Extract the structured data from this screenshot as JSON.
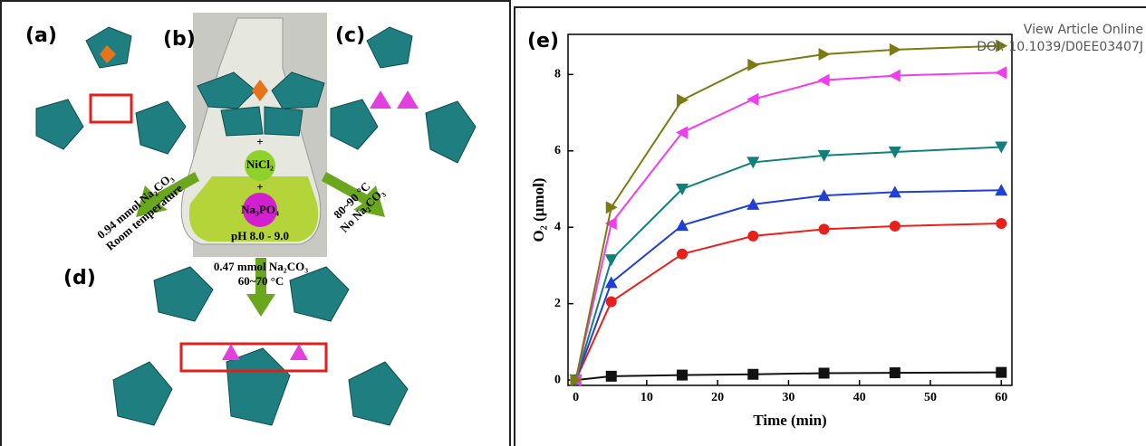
{
  "header": {
    "view_article": "View Article Online",
    "doi": "DOI: 10.1039/D0EE03407J"
  },
  "scheme": {
    "labels": [
      "(a)",
      "(b)",
      "(c)",
      "(d)"
    ],
    "plus": "+",
    "nicl2": "NiCl₂",
    "na3po4": "Na₃PO₄",
    "ph": "pH 8.0 - 9.0",
    "left_arrow": [
      "0.94 mmol Na₂CO₃",
      "Room temperature"
    ],
    "right_arrow": [
      "80~90 °C",
      "No Na₂CO₃"
    ],
    "down_arrow": [
      "0.47 mmol Na₂CO₃",
      "60~70 °C"
    ]
  },
  "chart_data": {
    "type": "line",
    "panel_label": "(e)",
    "xlabel": "Time (min)",
    "ylabel": "O₂ (μmol)",
    "x": [
      0,
      5,
      15,
      25,
      35,
      45,
      60
    ],
    "series": [
      {
        "color": "#111111",
        "marker": "square",
        "values": [
          0,
          0.1,
          0.13,
          0.15,
          0.18,
          0.19,
          0.2
        ]
      },
      {
        "color": "#e8201c",
        "marker": "circle",
        "values": [
          0,
          2.05,
          3.3,
          3.77,
          3.95,
          4.03,
          4.1
        ]
      },
      {
        "color": "#1f3fd6",
        "marker": "triangle-up",
        "values": [
          0,
          2.55,
          4.05,
          4.6,
          4.83,
          4.92,
          4.97
        ]
      },
      {
        "color": "#12807a",
        "marker": "triangle-down",
        "values": [
          0,
          3.15,
          5.0,
          5.7,
          5.88,
          5.97,
          6.1
        ]
      },
      {
        "color": "#f23cf0",
        "marker": "triangle-left",
        "values": [
          0,
          4.1,
          6.48,
          7.35,
          7.85,
          7.97,
          8.05
        ]
      },
      {
        "color": "#7c7a12",
        "marker": "triangle-right",
        "values": [
          0,
          4.52,
          7.33,
          8.25,
          8.53,
          8.65,
          8.75
        ]
      }
    ],
    "xlim": [
      -1.1,
      61.5
    ],
    "ylim": [
      -0.14,
      9.05
    ],
    "xticks": [
      0,
      10,
      20,
      30,
      40,
      50,
      60
    ],
    "yticks": [
      0,
      2,
      4,
      6,
      8
    ]
  }
}
